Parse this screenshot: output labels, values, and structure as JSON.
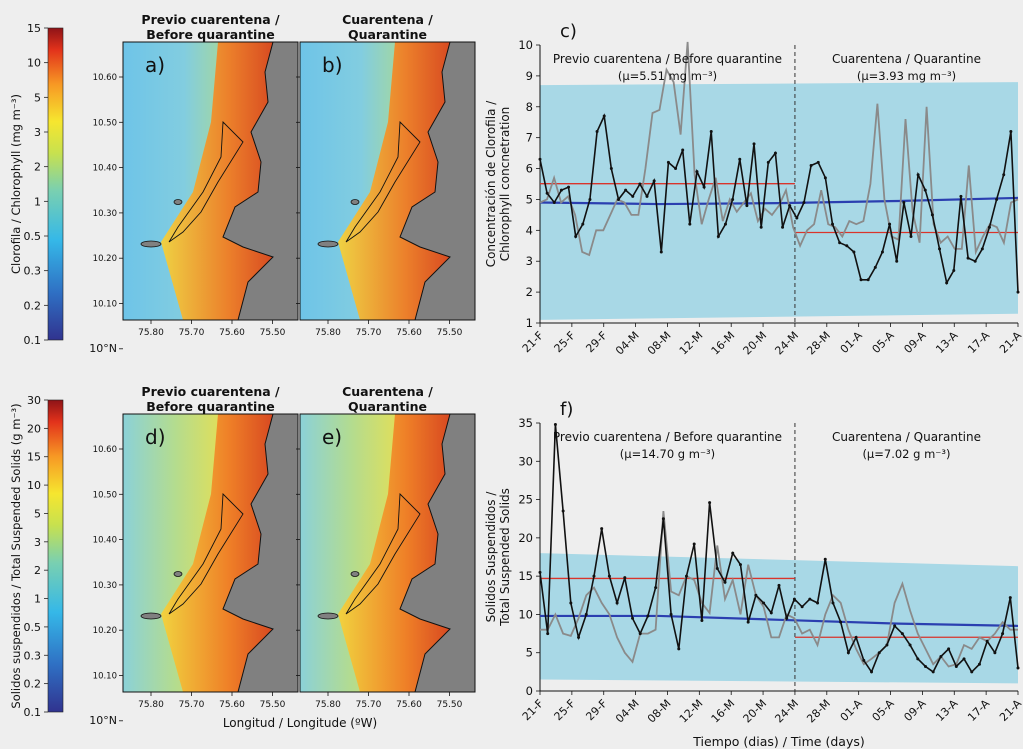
{
  "chart_data": [
    {
      "panel": "a-b",
      "type": "map",
      "panels": [
        {
          "letter": "a)",
          "title": "Previo cuarentena /",
          "title2": "Before quarantine"
        },
        {
          "letter": "b)",
          "title": "Cuarentena /",
          "title2": "Quarantine"
        }
      ],
      "colorbar_label": "Clorofila / Chlorophyll (mg m$^{-3}$)",
      "colorbar_ticks": [
        "15",
        "10",
        "5",
        "3",
        "2",
        "1",
        "0.5",
        "0.3",
        "0.2",
        "0.1"
      ],
      "lat_ticks": [
        "10.60",
        "10.50",
        "10.40",
        "10.30",
        "10.20",
        "10.10",
        "10°N"
      ],
      "lon_ticks": [
        "75.80",
        "75.70",
        "75.60",
        "75.50"
      ]
    },
    {
      "panel": "c",
      "type": "line",
      "letter": "c)",
      "ylabel": "Concentración de Clorofila / Chlorophyll concnetration",
      "ylim": [
        1,
        10
      ],
      "y_ticks": [
        1,
        2,
        3,
        4,
        5,
        6,
        7,
        8,
        9,
        10
      ],
      "x_ticks": [
        "21-F",
        "25-F",
        "29-F",
        "04-M",
        "08-M",
        "12-M",
        "16-M",
        "20-M",
        "24-M",
        "28-M",
        "01-A",
        "05-A",
        "09-A",
        "13-A",
        "17-A",
        "21-A"
      ],
      "annotations": {
        "left": "Previo cuarentena / Before quarantine",
        "left_mean": "(μ=5.51 mg m⁻³)",
        "right": "Cuarentena / Quarantine",
        "right_mean": "(μ=3.93 mg m⁻³)"
      },
      "means": {
        "before": 5.51,
        "after": 3.93
      },
      "band": {
        "lower": [
          1.1,
          1.3
        ],
        "upper": [
          8.7,
          8.8
        ]
      },
      "trend": [
        4.9,
        4.85,
        4.88,
        4.95,
        5.05
      ],
      "series": [
        {
          "values": [
            6.3,
            5.2,
            4.9,
            5.3,
            5.4,
            3.8,
            4.2,
            5.0,
            7.2,
            7.7,
            6.0,
            5.0,
            5.3,
            5.1,
            5.5,
            5.1,
            5.6,
            3.3,
            6.2,
            6.0,
            6.6,
            4.2,
            5.9,
            5.4,
            7.2,
            3.8,
            4.2,
            5.0,
            6.3,
            4.8,
            6.8,
            4.1,
            6.2,
            6.5,
            4.1,
            4.8,
            4.4,
            4.9,
            6.1,
            6.2,
            5.7,
            4.2,
            3.6,
            3.5,
            3.3,
            2.4,
            2.4,
            2.8,
            3.3,
            4.2,
            3.0,
            4.9,
            3.8,
            5.8,
            5.3,
            4.5,
            3.4,
            2.3,
            2.7,
            5.1,
            3.1,
            3.0,
            3.4,
            4.1,
            5.0,
            5.8,
            7.2,
            2.0
          ]
        },
        {
          "values": [
            4.9,
            5.0,
            5.7,
            4.9,
            5.1,
            4.5,
            3.3,
            3.2,
            4.0,
            4.0,
            4.5,
            5.0,
            4.9,
            4.5,
            4.5,
            6.0,
            7.8,
            7.9,
            9.2,
            8.8,
            7.1,
            10.1,
            5.8,
            4.2,
            5.0,
            5.7,
            4.3,
            5.0,
            4.6,
            4.9,
            5.2,
            4.3,
            4.7,
            4.5,
            4.8,
            5.3,
            4.1,
            3.5,
            4.0,
            4.2,
            5.3,
            4.2,
            4.1,
            3.8,
            4.3,
            4.2,
            4.3,
            5.5,
            8.1,
            5.0,
            3.8,
            3.7,
            7.6,
            4.6,
            3.6,
            8.0,
            4.2,
            3.6,
            3.8,
            3.4,
            3.4,
            6.1,
            3.3,
            3.8,
            4.2,
            4.1,
            3.6,
            4.9,
            5.0
          ]
        }
      ]
    },
    {
      "panel": "d-e",
      "type": "map",
      "panels": [
        {
          "letter": "d)",
          "title": "Previo cuarentena /",
          "title2": "Before quarantine"
        },
        {
          "letter": "e)",
          "title": "Cuarentena /",
          "title2": "Quarantine"
        }
      ],
      "colorbar_label": "Solidos suspendidos / Total Suspended Solids (g m$^{-3}$)",
      "colorbar_ticks": [
        "30",
        "20",
        "15",
        "10",
        "5",
        "3",
        "2",
        "1",
        "0.5",
        "0.3",
        "0.2",
        "0.1"
      ],
      "lat_ticks": [
        "10.60",
        "10.50",
        "10.40",
        "10.30",
        "10.20",
        "10.10",
        "10°N"
      ],
      "lon_ticks": [
        "75.80",
        "75.70",
        "75.60",
        "75.50"
      ],
      "xlabel": "Longitud / Longitude (ºW)"
    },
    {
      "panel": "f",
      "type": "line",
      "letter": "f)",
      "ylabel": "Solidos Suspendidos / Total Suspended Solids",
      "xlabel": "Tiempo (dias) / Time (days)",
      "ylim": [
        0,
        35
      ],
      "y_ticks": [
        0,
        5,
        10,
        15,
        20,
        25,
        30,
        35
      ],
      "x_ticks": [
        "21-F",
        "25-F",
        "29-F",
        "04-M",
        "08-M",
        "12-M",
        "16-M",
        "20-M",
        "24-M",
        "28-M",
        "01-A",
        "05-A",
        "09-A",
        "13-A",
        "17-A",
        "21-A"
      ],
      "annotations": {
        "left": "Previo cuarentena / Before quarantine",
        "left_mean": "(μ=14.70 g m⁻³)",
        "right": "Cuarentena / Quarantine",
        "right_mean": "(μ=7.02 g m⁻³)"
      },
      "means": {
        "before": 14.7,
        "after": 7.02
      },
      "band": {
        "lower": [
          1.5,
          1.0
        ],
        "upper": [
          18.0,
          16.3
        ]
      },
      "trend": [
        9.8,
        9.8,
        9.3,
        8.8,
        8.5
      ],
      "series": [
        {
          "values": [
            15.5,
            7.5,
            34.8,
            23.5,
            11.5,
            7.0,
            10.0,
            15.0,
            21.2,
            15.0,
            11.5,
            14.8,
            9.5,
            7.5,
            9.8,
            13.5,
            22.5,
            10.0,
            5.5,
            15.0,
            19.2,
            9.2,
            24.6,
            16.0,
            14.2,
            18.0,
            16.5,
            9.0,
            12.5,
            11.5,
            10.2,
            13.8,
            9.5,
            12.0,
            11.0,
            12.0,
            11.5,
            17.2,
            11.5,
            9.0,
            5.0,
            7.0,
            4.0,
            2.5,
            5.0,
            6.0,
            8.5,
            7.5,
            6.0,
            4.2,
            3.2,
            2.5,
            4.5,
            5.5,
            3.2,
            4.2,
            2.5,
            3.5,
            6.5,
            5.0,
            7.5,
            12.2,
            3.0
          ]
        },
        {
          "values": [
            8.0,
            8.0,
            10.0,
            7.5,
            7.2,
            9.5,
            12.5,
            13.5,
            11.5,
            10.0,
            7.0,
            5.0,
            3.8,
            7.5,
            7.5,
            8.0,
            23.5,
            13.0,
            12.5,
            15.0,
            14.5,
            11.5,
            10.2,
            19.0,
            12.0,
            14.5,
            10.0,
            16.5,
            12.5,
            11.0,
            7.0,
            7.0,
            10.0,
            9.5,
            7.5,
            8.0,
            6.0,
            10.0,
            12.5,
            11.5,
            8.0,
            5.5,
            3.5,
            4.2,
            5.0,
            6.0,
            11.5,
            14.0,
            10.5,
            7.5,
            5.5,
            3.5,
            4.5,
            3.2,
            3.5,
            6.0,
            5.5,
            7.0,
            6.5,
            7.5,
            9.0,
            8.0,
            8.0
          ]
        }
      ]
    }
  ]
}
